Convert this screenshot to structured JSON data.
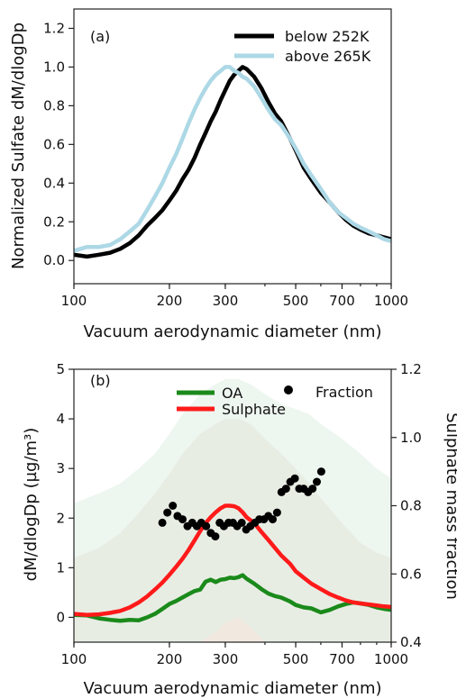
{
  "chart_data": [
    {
      "type": "line",
      "panel_label": "(a)",
      "xlabel": "Vacuum aerodynamic diameter (nm)",
      "ylabel": "Normalized Sulfate dM/dlogDp",
      "xscale": "log",
      "xlim": [
        100,
        1000
      ],
      "ylim": [
        -0.12,
        1.3
      ],
      "xticks": [
        100,
        200,
        300,
        500,
        700,
        1000
      ],
      "xtick_labels": [
        "100",
        "200",
        "300",
        "500",
        "700",
        "1000"
      ],
      "yticks": [
        0.0,
        0.2,
        0.4,
        0.6,
        0.8,
        1.0,
        1.2
      ],
      "ytick_labels": [
        "0.0",
        "0.2",
        "0.4",
        "0.6",
        "0.8",
        "1.0",
        "1.2"
      ],
      "legend_position": "top-right",
      "series": [
        {
          "name": "below 252K",
          "color": "#000000",
          "x": [
            100,
            110,
            120,
            130,
            140,
            150,
            160,
            170,
            180,
            190,
            200,
            210,
            220,
            230,
            240,
            250,
            260,
            270,
            280,
            290,
            300,
            310,
            320,
            330,
            340,
            350,
            370,
            390,
            410,
            430,
            450,
            480,
            500,
            530,
            560,
            600,
            640,
            680,
            720,
            760,
            800,
            850,
            900,
            950,
            1000
          ],
          "y": [
            0.03,
            0.02,
            0.03,
            0.04,
            0.06,
            0.09,
            0.13,
            0.18,
            0.22,
            0.26,
            0.31,
            0.36,
            0.42,
            0.47,
            0.53,
            0.6,
            0.66,
            0.72,
            0.77,
            0.83,
            0.88,
            0.93,
            0.96,
            0.98,
            1.0,
            0.99,
            0.95,
            0.89,
            0.82,
            0.76,
            0.72,
            0.63,
            0.57,
            0.48,
            0.42,
            0.35,
            0.3,
            0.25,
            0.21,
            0.18,
            0.16,
            0.14,
            0.13,
            0.12,
            0.11
          ]
        },
        {
          "name": "above 265K",
          "color": "#add8e6",
          "x": [
            100,
            110,
            120,
            130,
            140,
            150,
            160,
            170,
            180,
            190,
            200,
            210,
            220,
            230,
            240,
            250,
            260,
            270,
            280,
            290,
            300,
            310,
            320,
            330,
            340,
            350,
            370,
            390,
            410,
            430,
            450,
            480,
            500,
            530,
            560,
            600,
            640,
            680,
            720,
            760,
            800,
            850,
            900,
            950,
            1000
          ],
          "y": [
            0.05,
            0.07,
            0.07,
            0.08,
            0.11,
            0.15,
            0.19,
            0.26,
            0.33,
            0.4,
            0.48,
            0.55,
            0.63,
            0.71,
            0.78,
            0.84,
            0.89,
            0.93,
            0.96,
            0.98,
            1.0,
            1.0,
            0.98,
            0.97,
            0.95,
            0.94,
            0.9,
            0.84,
            0.78,
            0.73,
            0.7,
            0.63,
            0.58,
            0.5,
            0.44,
            0.37,
            0.3,
            0.25,
            0.22,
            0.19,
            0.17,
            0.15,
            0.13,
            0.11,
            0.1
          ]
        }
      ]
    },
    {
      "type": "line",
      "panel_label": "(b)",
      "xlabel": "Vacuum aerodynamic diameter (nm)",
      "ylabel": "dM/dlogDp (µg/m³)",
      "y2label": "Sulphate mass fraction",
      "xscale": "log",
      "xlim": [
        100,
        1000
      ],
      "ylim": [
        -0.5,
        5
      ],
      "y2lim": [
        0.4,
        1.2
      ],
      "xticks": [
        100,
        200,
        300,
        500,
        700,
        1000
      ],
      "xtick_labels": [
        "100",
        "200",
        "300",
        "500",
        "700",
        "1000"
      ],
      "yticks": [
        0,
        1,
        2,
        3,
        4,
        5
      ],
      "ytick_labels": [
        "0",
        "1",
        "2",
        "3",
        "4",
        "5"
      ],
      "y2ticks": [
        0.4,
        0.6,
        0.8,
        1.0,
        1.2
      ],
      "y2tick_labels": [
        "0.4",
        "0.6",
        "0.8",
        "1.0",
        "1.2"
      ],
      "legend_position": "top",
      "shaded_bands": [
        {
          "series": "Sulphate",
          "color": "#e8d8cc",
          "x": [
            100,
            120,
            140,
            160,
            180,
            200,
            220,
            250,
            280,
            300,
            330,
            360,
            400,
            450,
            500,
            550,
            600,
            700,
            800,
            900,
            1000
          ],
          "lower": [
            -0.5,
            -0.5,
            -0.5,
            -0.5,
            -0.5,
            -0.5,
            -0.5,
            -0.5,
            -0.5,
            -0.5,
            -0.5,
            -0.5,
            -0.5,
            -0.5,
            -0.5,
            -0.5,
            -0.5,
            -0.5,
            -0.5,
            -0.5,
            -0.5
          ],
          "upper": [
            1.2,
            1.4,
            1.7,
            2.1,
            2.5,
            2.9,
            3.3,
            3.7,
            3.9,
            4.0,
            4.0,
            3.9,
            3.6,
            3.3,
            3.0,
            2.7,
            2.4,
            1.9,
            1.5,
            1.3,
            1.2
          ]
        },
        {
          "series": "OA",
          "color": "#e3f0e6",
          "x": [
            100,
            120,
            140,
            160,
            180,
            200,
            220,
            250,
            280,
            300,
            330,
            360,
            400,
            450,
            500,
            550,
            600,
            700,
            800,
            900,
            1000
          ],
          "lower": [
            -0.5,
            -0.5,
            -0.5,
            -0.5,
            -0.5,
            -0.5,
            -0.5,
            -0.5,
            -0.3,
            -0.1,
            0.0,
            -0.2,
            -0.5,
            -0.5,
            -0.5,
            -0.5,
            -0.5,
            -0.5,
            -0.5,
            -0.5,
            -0.5
          ],
          "upper": [
            2.3,
            2.5,
            2.7,
            3.0,
            3.3,
            3.7,
            4.1,
            4.5,
            4.7,
            4.8,
            4.8,
            4.7,
            4.5,
            4.3,
            4.2,
            4.1,
            3.9,
            3.6,
            3.3,
            3.0,
            2.8
          ]
        }
      ],
      "series": [
        {
          "name": "OA",
          "color": "#1a8a1a",
          "axis": "left",
          "x": [
            100,
            110,
            120,
            130,
            140,
            150,
            160,
            170,
            180,
            190,
            200,
            210,
            220,
            230,
            240,
            250,
            260,
            270,
            280,
            290,
            300,
            310,
            320,
            330,
            340,
            350,
            370,
            390,
            410,
            430,
            450,
            480,
            500,
            530,
            560,
            600,
            640,
            680,
            720,
            760,
            800,
            850,
            900,
            950,
            1000
          ],
          "y": [
            0.05,
            0.04,
            -0.02,
            -0.05,
            -0.07,
            -0.05,
            -0.06,
            0.0,
            0.07,
            0.17,
            0.27,
            0.33,
            0.4,
            0.47,
            0.53,
            0.56,
            0.72,
            0.76,
            0.71,
            0.76,
            0.77,
            0.8,
            0.79,
            0.81,
            0.85,
            0.78,
            0.68,
            0.57,
            0.48,
            0.43,
            0.4,
            0.32,
            0.25,
            0.2,
            0.18,
            0.1,
            0.15,
            0.22,
            0.27,
            0.3,
            0.28,
            0.25,
            0.2,
            0.17,
            0.15
          ]
        },
        {
          "name": "Sulphate",
          "color": "#ff1a1a",
          "axis": "left",
          "x": [
            100,
            110,
            120,
            130,
            140,
            150,
            160,
            170,
            180,
            190,
            200,
            210,
            220,
            230,
            240,
            250,
            260,
            270,
            280,
            290,
            300,
            310,
            320,
            330,
            340,
            350,
            370,
            390,
            410,
            430,
            450,
            480,
            500,
            530,
            560,
            600,
            640,
            680,
            720,
            760,
            800,
            850,
            900,
            950,
            1000
          ],
          "y": [
            0.07,
            0.05,
            0.06,
            0.09,
            0.13,
            0.2,
            0.3,
            0.42,
            0.56,
            0.7,
            0.86,
            1.02,
            1.18,
            1.36,
            1.55,
            1.74,
            1.9,
            2.02,
            2.12,
            2.2,
            2.25,
            2.25,
            2.24,
            2.2,
            2.12,
            2.02,
            1.9,
            1.72,
            1.56,
            1.4,
            1.25,
            1.08,
            0.93,
            0.8,
            0.68,
            0.57,
            0.47,
            0.4,
            0.34,
            0.3,
            0.28,
            0.26,
            0.24,
            0.22,
            0.21
          ]
        },
        {
          "name": "Fraction",
          "color": "#000000",
          "axis": "right",
          "marker": "circle",
          "x": [
            190,
            197,
            205,
            212,
            220,
            228,
            236,
            244,
            252,
            261,
            270,
            279,
            288,
            297,
            307,
            317,
            327,
            338,
            349,
            360,
            372,
            384,
            397,
            410,
            423,
            437,
            451,
            466,
            481,
            497,
            513,
            530,
            547,
            565,
            583,
            602
          ],
          "y": [
            0.75,
            0.78,
            0.8,
            0.77,
            0.76,
            0.74,
            0.75,
            0.74,
            0.75,
            0.74,
            0.72,
            0.71,
            0.75,
            0.74,
            0.75,
            0.75,
            0.74,
            0.75,
            0.73,
            0.74,
            0.75,
            0.76,
            0.76,
            0.77,
            0.76,
            0.78,
            0.84,
            0.85,
            0.87,
            0.88,
            0.85,
            0.85,
            0.84,
            0.85,
            0.87,
            0.9
          ]
        }
      ]
    }
  ]
}
